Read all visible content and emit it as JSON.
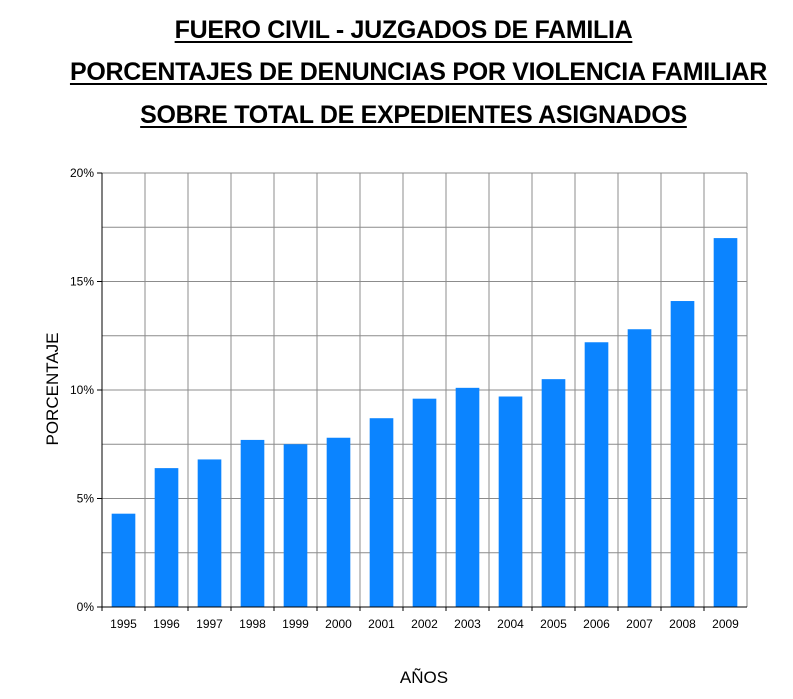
{
  "title_lines": [
    "FUERO CIVIL - JUZGADOS DE FAMILIA",
    "PORCENTAJES DE DENUNCIAS POR VIOLENCIA FAMILIAR",
    "SOBRE TOTAL DE EXPEDIENTES ASIGNADOS"
  ],
  "chart_data": {
    "type": "bar",
    "title": "FUERO CIVIL - JUZGADOS DE FAMILIA PORCENTAJES DE DENUNCIAS POR VIOLENCIA FAMILIAR SOBRE TOTAL DE EXPEDIENTES ASIGNADOS",
    "xlabel": "AÑOS",
    "ylabel": "PORCENTAJE",
    "categories": [
      "1995",
      "1996",
      "1997",
      "1998",
      "1999",
      "2000",
      "2001",
      "2002",
      "2003",
      "2004",
      "2005",
      "2006",
      "2007",
      "2008",
      "2009"
    ],
    "values": [
      4.3,
      6.4,
      6.8,
      7.7,
      7.5,
      7.8,
      8.7,
      9.6,
      10.1,
      9.7,
      10.5,
      12.2,
      12.8,
      14.1,
      17.0
    ],
    "ylim": [
      0,
      20
    ],
    "y_ticks": [
      {
        "value": 0,
        "label": "0%"
      },
      {
        "value": 5,
        "label": "5%"
      },
      {
        "value": 10,
        "label": "10%"
      },
      {
        "value": 15,
        "label": "15%"
      },
      {
        "value": 20,
        "label": "20%"
      }
    ],
    "grid": true,
    "bar_color": "#0b84ff"
  }
}
